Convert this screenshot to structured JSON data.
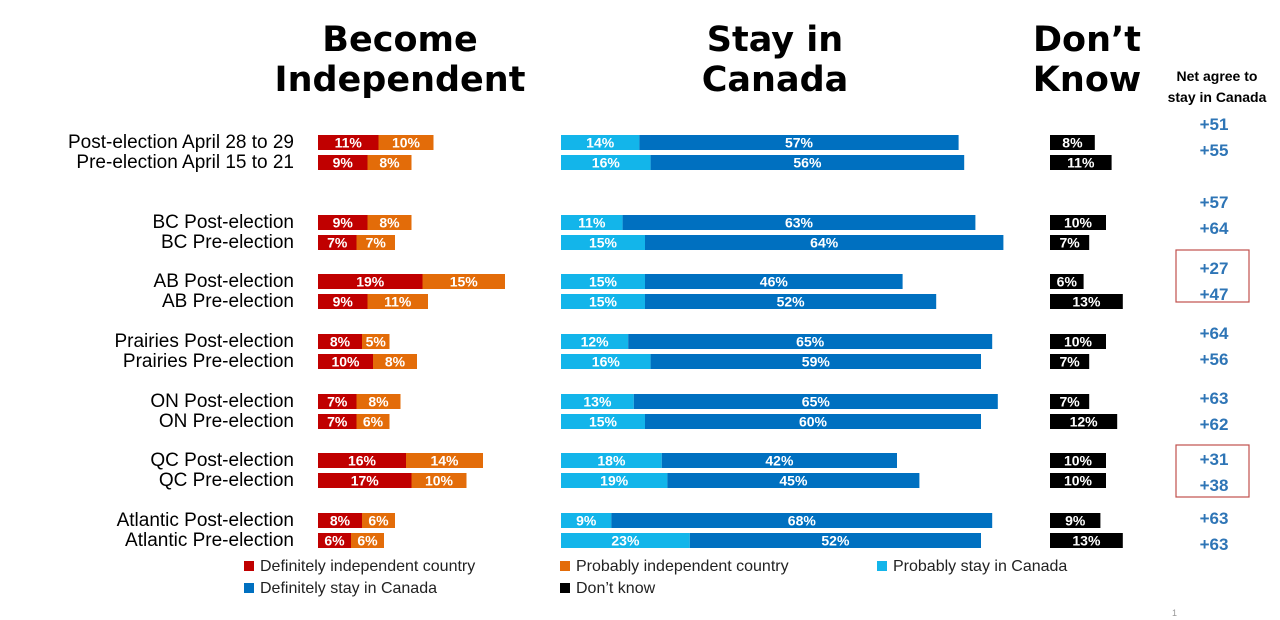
{
  "headers": {
    "independent_line1": "Become",
    "independent_line2": "Independent",
    "stay_line1": "Stay in",
    "stay_line2": "Canada",
    "dk_line1": "Don’t",
    "dk_line2": "Know",
    "net_line1": "Net agree to",
    "net_line2": "stay in Canada"
  },
  "page_number": "1",
  "colors": {
    "definitely_independent": "#C00000",
    "probably_independent": "#E36C09",
    "probably_stay": "#13B5EA",
    "definitely_stay": "#0070C0",
    "dont_know": "#000000",
    "net": "#2E75B6",
    "highlight_box": "#C0504D"
  },
  "legend": [
    {
      "label": "Definitely independent country",
      "color": "#C00000"
    },
    {
      "label": "Probably independent country",
      "color": "#E36C09"
    },
    {
      "label": "Probably stay in Canada",
      "color": "#13B5EA"
    },
    {
      "label": "Definitely stay in Canada",
      "color": "#0070C0"
    },
    {
      "label": "Don’t know",
      "color": "#000000"
    }
  ],
  "chart_data": {
    "type": "bar",
    "orientation": "horizontal",
    "stacked": true,
    "categories": [
      "Post-election April 28 to 29",
      "Pre-election April 15 to 21",
      "BC Post-election",
      "BC Pre-election",
      "AB Post-election",
      "AB Pre-election",
      "Prairies Post-election",
      "Prairies Pre-election",
      "ON Post-election",
      "ON Pre-election",
      "QC Post-election",
      "QC Pre-election",
      "Atlantic Post-election",
      "Atlantic Pre-election"
    ],
    "series": [
      {
        "name": "Definitely independent country",
        "group": "Become Independent",
        "values": [
          11,
          9,
          9,
          7,
          19,
          9,
          8,
          10,
          7,
          7,
          16,
          17,
          8,
          6
        ]
      },
      {
        "name": "Probably independent country",
        "group": "Become Independent",
        "values": [
          10,
          8,
          8,
          7,
          15,
          11,
          5,
          8,
          8,
          6,
          14,
          10,
          6,
          6
        ]
      },
      {
        "name": "Probably stay in Canada",
        "group": "Stay in Canada",
        "values": [
          14,
          16,
          11,
          15,
          15,
          15,
          12,
          16,
          13,
          15,
          18,
          19,
          9,
          23
        ]
      },
      {
        "name": "Definitely stay in Canada",
        "group": "Stay in Canada",
        "values": [
          57,
          56,
          63,
          64,
          46,
          52,
          65,
          59,
          65,
          60,
          42,
          45,
          68,
          52
        ]
      },
      {
        "name": "Don’t know",
        "group": "Don’t Know",
        "values": [
          8,
          11,
          10,
          7,
          6,
          13,
          10,
          7,
          7,
          12,
          10,
          10,
          9,
          13
        ]
      }
    ],
    "net_agree_to_stay": [
      "+51",
      "+55",
      "+57",
      "+64",
      "+27",
      "+47",
      "+64",
      "+56",
      "+63",
      "+62",
      "+31",
      "+38",
      "+63",
      "+63"
    ],
    "highlighted_net_groups": [
      "AB",
      "QC"
    ],
    "data_labels": true,
    "grid": false,
    "legend_position": "bottom"
  }
}
